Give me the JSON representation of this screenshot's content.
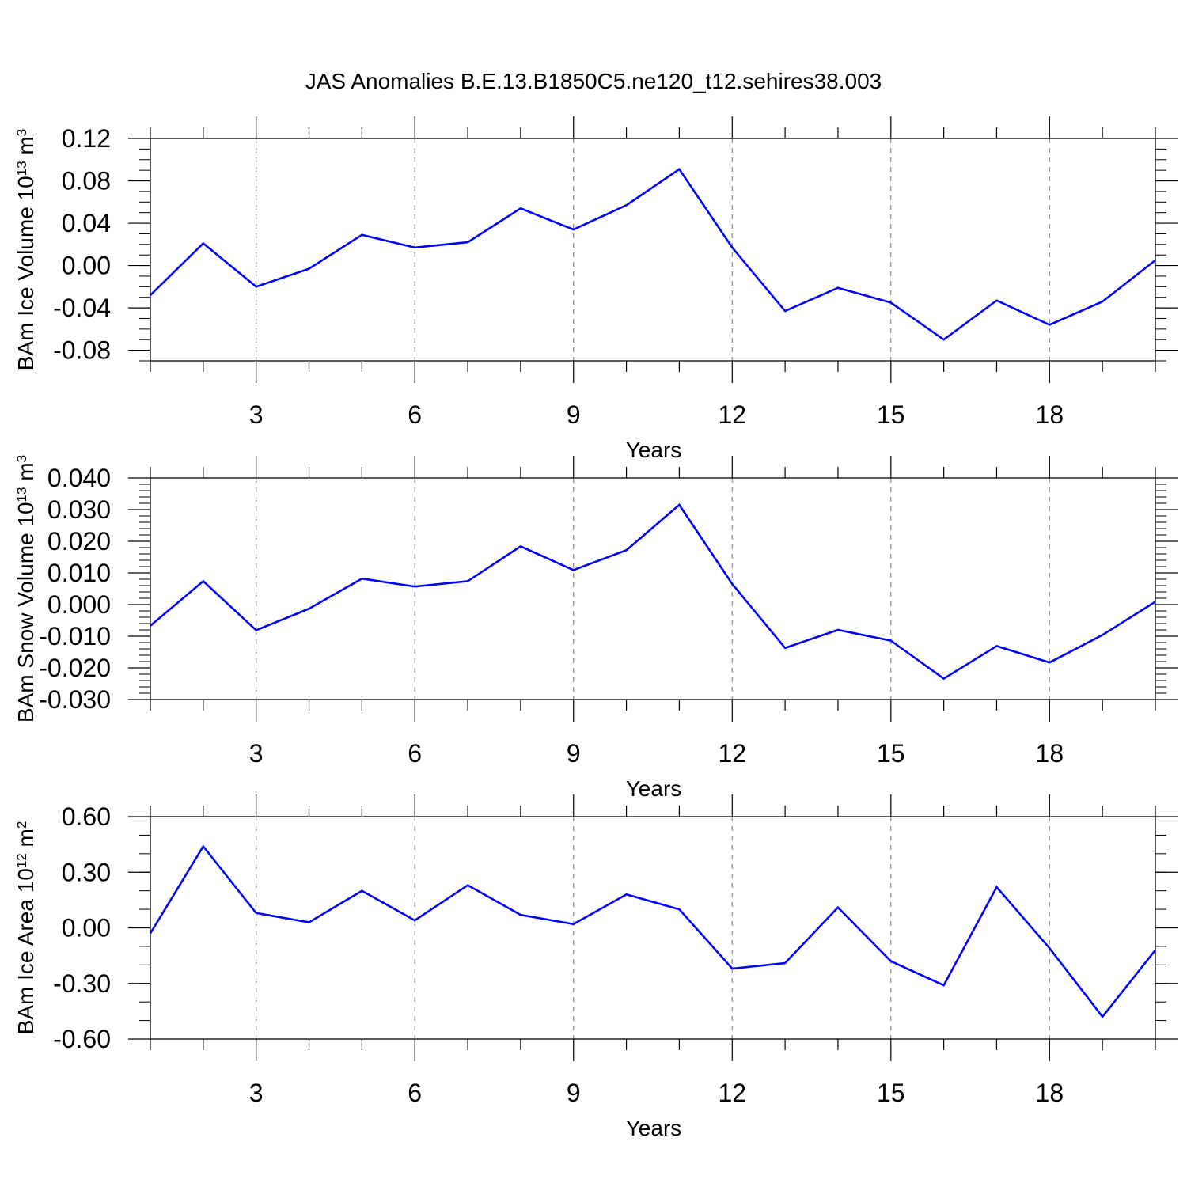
{
  "figure": {
    "title": "JAS Anomalies B.E.13.B1850C5.ne120_t12.sehires38.003"
  },
  "colors": {
    "series_line": "#0000ff",
    "axis": "#000000",
    "grid": "#888888",
    "background": "#ffffff"
  },
  "chart_data": [
    {
      "type": "line",
      "title": "",
      "xlabel": "Years",
      "ylabel": {
        "text": "BAm Ice Volume 10",
        "power": "13",
        "unit_base": " m",
        "unit_power": "3"
      },
      "xlim": [
        1,
        20
      ],
      "ylim": [
        -0.09,
        0.12
      ],
      "xticks": [
        3,
        6,
        9,
        12,
        15,
        18
      ],
      "xtick_labels": [
        "3",
        "6",
        "9",
        "12",
        "15",
        "18"
      ],
      "yticks": [
        -0.08,
        -0.04,
        0.0,
        0.04,
        0.08,
        0.12
      ],
      "ytick_labels": [
        "-0.08",
        "-0.04",
        "0.00",
        "0.04",
        "0.08",
        "0.12"
      ],
      "yminor_step": 0.01,
      "grid": "vertical dashed at major x ticks",
      "x": [
        1,
        2,
        3,
        4,
        5,
        6,
        7,
        8,
        9,
        10,
        11,
        12,
        13,
        14,
        15,
        16,
        17,
        18,
        19,
        20
      ],
      "series": [
        {
          "values": [
            -0.028,
            0.021,
            -0.02,
            -0.003,
            0.029,
            0.017,
            0.022,
            0.054,
            0.034,
            0.057,
            0.091,
            0.017,
            -0.043,
            -0.021,
            -0.035,
            -0.07,
            -0.033,
            -0.056,
            -0.034,
            0.005
          ]
        }
      ]
    },
    {
      "type": "line",
      "title": "",
      "xlabel": "Years",
      "ylabel": {
        "text": "BAm Snow Volume 10",
        "power": "13",
        "unit_base": " m",
        "unit_power": "3"
      },
      "xlim": [
        1,
        20
      ],
      "ylim": [
        -0.03,
        0.04
      ],
      "xticks": [
        3,
        6,
        9,
        12,
        15,
        18
      ],
      "xtick_labels": [
        "3",
        "6",
        "9",
        "12",
        "15",
        "18"
      ],
      "yticks": [
        -0.03,
        -0.02,
        -0.01,
        0.0,
        0.01,
        0.02,
        0.03,
        0.04
      ],
      "ytick_labels": [
        "-0.030",
        "-0.020",
        "-0.010",
        "0.000",
        "0.010",
        "0.020",
        "0.030",
        "0.040"
      ],
      "yminor_step": 0.002,
      "grid": "vertical dashed at major x ticks",
      "x": [
        1,
        2,
        3,
        4,
        5,
        6,
        7,
        8,
        9,
        10,
        11,
        12,
        13,
        14,
        15,
        16,
        17,
        18,
        19,
        20
      ],
      "series": [
        {
          "values": [
            -0.0067,
            0.0074,
            -0.0081,
            -0.0013,
            0.0082,
            0.0057,
            0.0074,
            0.0184,
            0.0109,
            0.0172,
            0.0315,
            0.0065,
            -0.0137,
            -0.008,
            -0.0114,
            -0.0234,
            -0.0131,
            -0.0183,
            -0.0096,
            0.0009
          ]
        }
      ]
    },
    {
      "type": "line",
      "title": "",
      "xlabel": "Years",
      "ylabel": {
        "text": "BAm Ice Area 10",
        "power": "12",
        "unit_base": " m",
        "unit_power": "2"
      },
      "xlim": [
        1,
        20
      ],
      "ylim": [
        -0.6,
        0.6
      ],
      "xticks": [
        3,
        6,
        9,
        12,
        15,
        18
      ],
      "xtick_labels": [
        "3",
        "6",
        "9",
        "12",
        "15",
        "18"
      ],
      "yticks": [
        -0.6,
        -0.3,
        0.0,
        0.3,
        0.6
      ],
      "ytick_labels": [
        "-0.60",
        "-0.30",
        "0.00",
        "0.30",
        "0.60"
      ],
      "yminor_step": 0.1,
      "grid": "vertical dashed at major x ticks",
      "x": [
        1,
        2,
        3,
        4,
        5,
        6,
        7,
        8,
        9,
        10,
        11,
        12,
        13,
        14,
        15,
        16,
        17,
        18,
        19,
        20
      ],
      "series": [
        {
          "values": [
            -0.03,
            0.44,
            0.08,
            0.03,
            0.2,
            0.04,
            0.23,
            0.07,
            0.02,
            0.18,
            0.1,
            -0.22,
            -0.19,
            0.11,
            -0.18,
            -0.31,
            0.22,
            -0.11,
            -0.48,
            -0.12
          ]
        }
      ]
    }
  ]
}
